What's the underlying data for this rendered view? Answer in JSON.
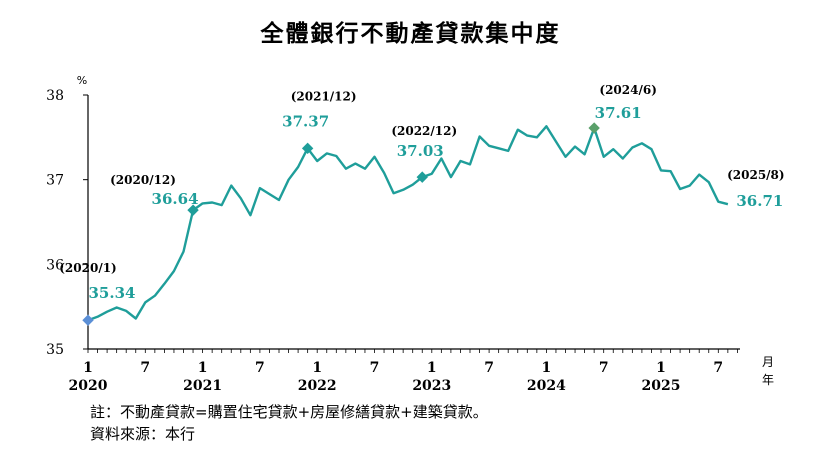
{
  "chart_data": {
    "type": "line",
    "title": "全體銀行不動產貸款集中度",
    "ylabel": "%",
    "xlabel": "月\n年",
    "ylim": [
      35,
      38
    ],
    "yticks": [
      "35",
      "36",
      "37",
      "38"
    ],
    "xticks": [
      {
        "month": "1",
        "year": "2020",
        "index": 0
      },
      {
        "month": "7",
        "index": 6
      },
      {
        "month": "1",
        "year": "2021",
        "index": 12
      },
      {
        "month": "7",
        "index": 18
      },
      {
        "month": "1",
        "year": "2022",
        "index": 24
      },
      {
        "month": "7",
        "index": 30
      },
      {
        "month": "1",
        "year": "2023",
        "index": 36
      },
      {
        "month": "7",
        "index": 42
      },
      {
        "month": "1",
        "year": "2024",
        "index": 48
      },
      {
        "month": "7",
        "index": 54
      },
      {
        "month": "1",
        "year": "2025",
        "index": 60
      },
      {
        "month": "7",
        "index": 66
      }
    ],
    "line_color": "#1f9e9a",
    "series": [
      {
        "values": [
          35.34,
          35.38,
          35.44,
          35.49,
          35.45,
          35.36,
          35.55,
          35.63,
          35.77,
          35.92,
          36.15,
          36.64,
          36.72,
          36.73,
          36.7,
          36.93,
          36.78,
          36.58,
          36.9,
          36.83,
          36.76,
          37.0,
          37.15,
          37.37,
          37.22,
          37.31,
          37.28,
          37.13,
          37.19,
          37.13,
          37.27,
          37.08,
          36.84,
          36.88,
          36.94,
          37.03,
          37.07,
          37.25,
          37.03,
          37.22,
          37.18,
          37.51,
          37.4,
          37.37,
          37.34,
          37.59,
          37.52,
          37.5,
          37.63,
          37.45,
          37.27,
          37.39,
          37.3,
          37.61,
          37.27,
          37.36,
          37.25,
          37.38,
          37.43,
          37.36,
          37.11,
          37.1,
          36.89,
          36.93,
          37.06,
          36.97,
          36.74,
          36.71
        ]
      }
    ],
    "annotations": [
      {
        "index": 0,
        "date": "(2020/1)",
        "value": "35.34",
        "marker_color": "#5b8fd6"
      },
      {
        "index": 11,
        "date": "(2020/12)",
        "value": "36.64",
        "marker_color": "#1f9e9a"
      },
      {
        "index": 23,
        "date": "(2021/12)",
        "value": "37.37",
        "marker_color": "#1f9e9a"
      },
      {
        "index": 35,
        "date": "(2022/12)",
        "value": "37.03",
        "marker_color": "#1f9e9a"
      },
      {
        "index": 53,
        "date": "(2024/6)",
        "value": "37.61",
        "marker_color": "#5aa06a"
      },
      {
        "index": 67,
        "date": "(2025/8)",
        "value": "36.71",
        "marker_color": null
      }
    ]
  },
  "notes": {
    "note": "註：不動產貸款=購置住宅貸款+房屋修繕貸款+建築貸款。",
    "source": "資料來源：本行"
  }
}
